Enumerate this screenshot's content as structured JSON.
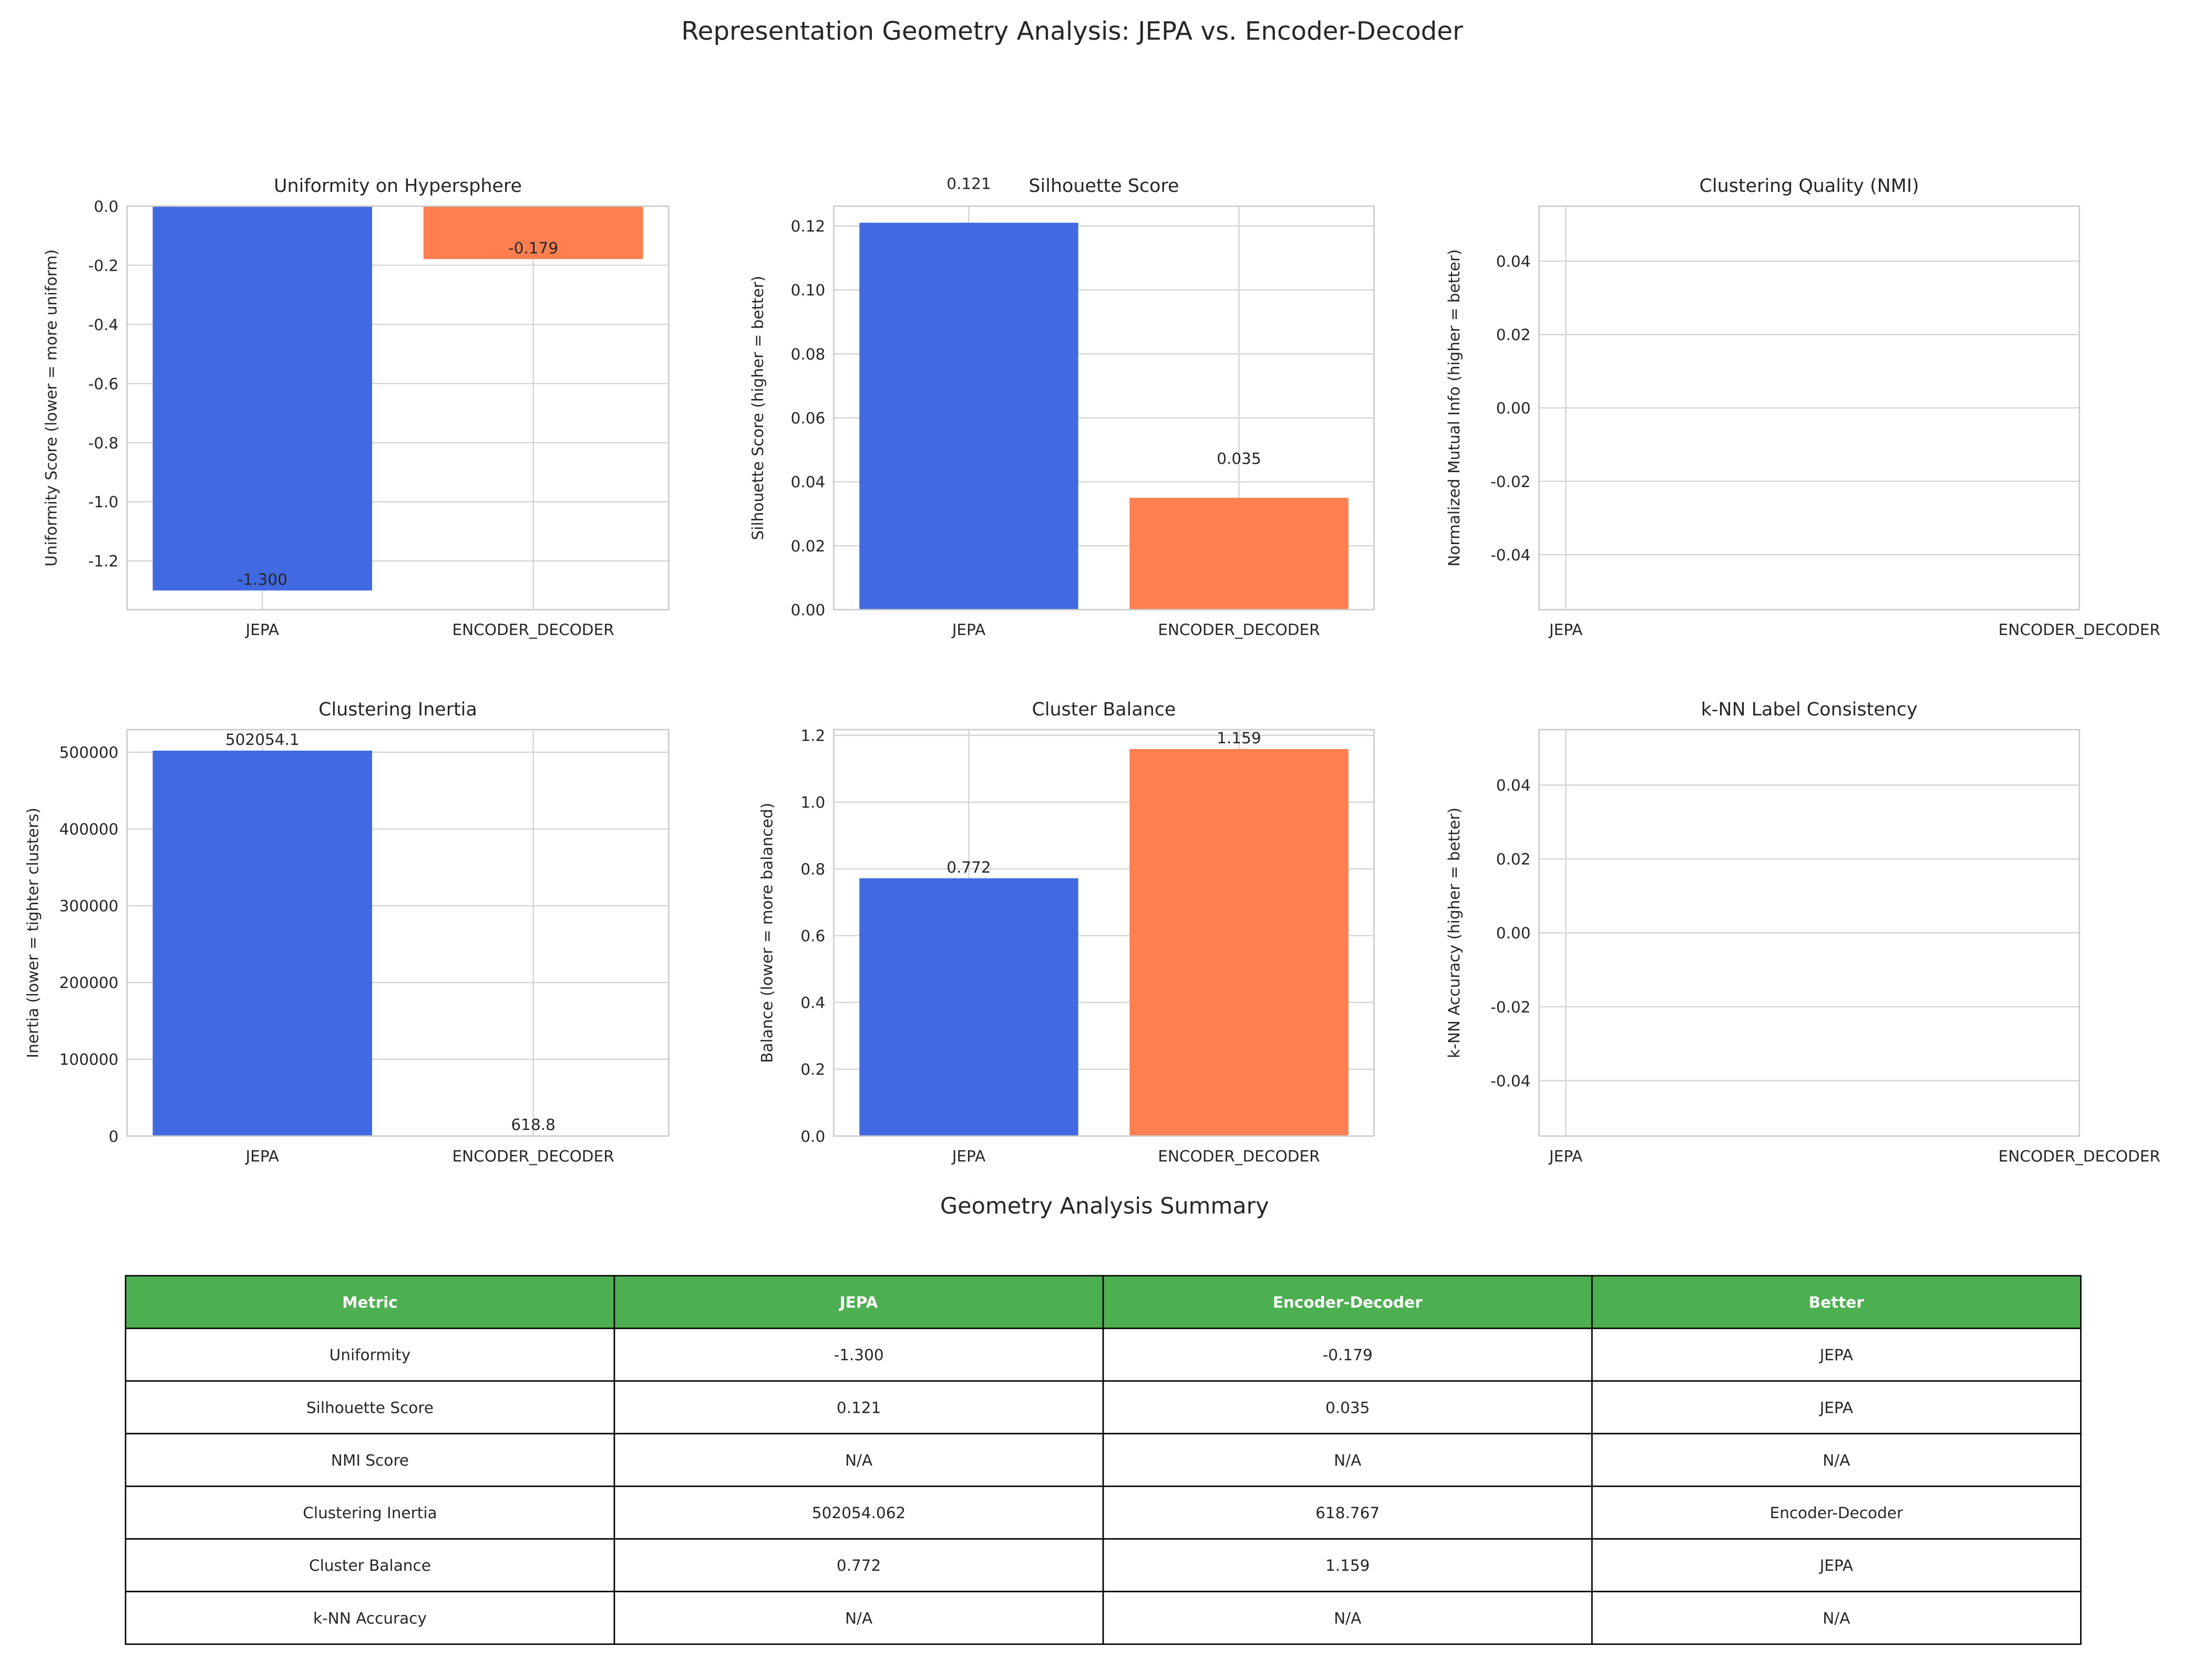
{
  "title": "Representation Geometry Analysis: JEPA vs. Encoder-Decoder",
  "chart_data": [
    {
      "type": "bar",
      "title": "Uniformity on Hypersphere",
      "ylabel": "Uniformity Score (lower = more uniform)",
      "categories": [
        "JEPA",
        "ENCODER_DECODER"
      ],
      "values": [
        -1.3,
        -0.179
      ],
      "value_labels": [
        "-1.300",
        "-0.179"
      ],
      "colors": [
        "#4169e1",
        "#ff7f50"
      ],
      "ylim": [
        -1.365,
        0
      ],
      "yticks": [
        {
          "value": 0,
          "label": "0.0"
        },
        -0.2,
        -0.4,
        -0.6,
        -0.8,
        {
          "value": -1,
          "label": "-1.0"
        },
        -1.2
      ],
      "grid": true
    },
    {
      "type": "bar",
      "title": "Silhouette Score",
      "ylabel": "Silhouette Score (higher = better)",
      "categories": [
        "JEPA",
        "ENCODER_DECODER"
      ],
      "values": [
        0.121,
        0.035
      ],
      "colors": [
        "#4169e1",
        "#ff7f50"
      ],
      "ylim": [
        0,
        0.1262
      ],
      "yticks": [
        {
          "value": 0,
          "label": "0.00"
        },
        0.02,
        0.04,
        0.06,
        0.08,
        {
          "value": 0.1,
          "label": "0.10"
        },
        0.12
      ],
      "grid": true
    },
    {
      "type": "bar",
      "title": "Clustering Quality (NMI)",
      "ylabel": "Normalized Mutual Info (higher = better)",
      "categories": [
        "JEPA",
        "ENCODER_DECODER"
      ],
      "ylim": [
        -0.055,
        0.055
      ],
      "yticks": [
        -0.04,
        -0.02,
        {
          "value": 0,
          "label": "0.00"
        },
        0.02,
        0.04
      ],
      "grid": true
    },
    {
      "type": "bar",
      "title": "Clustering Inertia",
      "ylabel": "Inertia (lower = tighter clusters)",
      "categories": [
        "JEPA",
        "ENCODER_DECODER"
      ],
      "values": [
        502054.062,
        618.767
      ],
      "value_labels": [
        "502054.1",
        "618.8"
      ],
      "colors": [
        "#4169e1",
        "#ff7f50"
      ],
      "ylim": [
        0,
        529400
      ],
      "yticks": [
        0,
        100000,
        200000,
        300000,
        400000,
        500000
      ],
      "grid": true
    },
    {
      "type": "bar",
      "title": "Cluster Balance",
      "ylabel": "Balance (lower = more balanced)",
      "categories": [
        "JEPA",
        "ENCODER_DECODER"
      ],
      "values": [
        0.772,
        1.159
      ],
      "colors": [
        "#4169e1",
        "#ff7f50"
      ],
      "ylim": [
        0,
        1.217
      ],
      "yticks": [
        {
          "value": 0,
          "label": "0.0"
        },
        0.2,
        0.4,
        0.6,
        0.8,
        {
          "value": 1,
          "label": "1.0"
        },
        1.2
      ],
      "grid": true
    },
    {
      "type": "bar",
      "title": "k-NN Label Consistency",
      "ylabel": "k-NN Accuracy (higher = better)",
      "categories": [
        "JEPA",
        "ENCODER_DECODER"
      ],
      "ylim": [
        -0.055,
        0.055
      ],
      "yticks": [
        -0.04,
        -0.02,
        {
          "value": 0,
          "label": "0.00"
        },
        0.02,
        0.04
      ],
      "grid": true
    }
  ],
  "summary": {
    "title": "Geometry Analysis Summary",
    "header": [
      "Metric",
      "JEPA",
      "Encoder-Decoder",
      "Better"
    ],
    "rows": [
      [
        "Uniformity",
        "-1.300",
        "-0.179",
        "JEPA"
      ],
      [
        "Silhouette Score",
        "0.121",
        "0.035",
        "JEPA"
      ],
      [
        "NMI Score",
        "N/A",
        "N/A",
        "N/A"
      ],
      [
        "Clustering Inertia",
        "502054.062",
        "618.767",
        "Encoder-Decoder"
      ],
      [
        "Cluster Balance",
        "0.772",
        "1.159",
        "JEPA"
      ],
      [
        "k-NN Accuracy",
        "N/A",
        "N/A",
        "N/A"
      ]
    ]
  }
}
